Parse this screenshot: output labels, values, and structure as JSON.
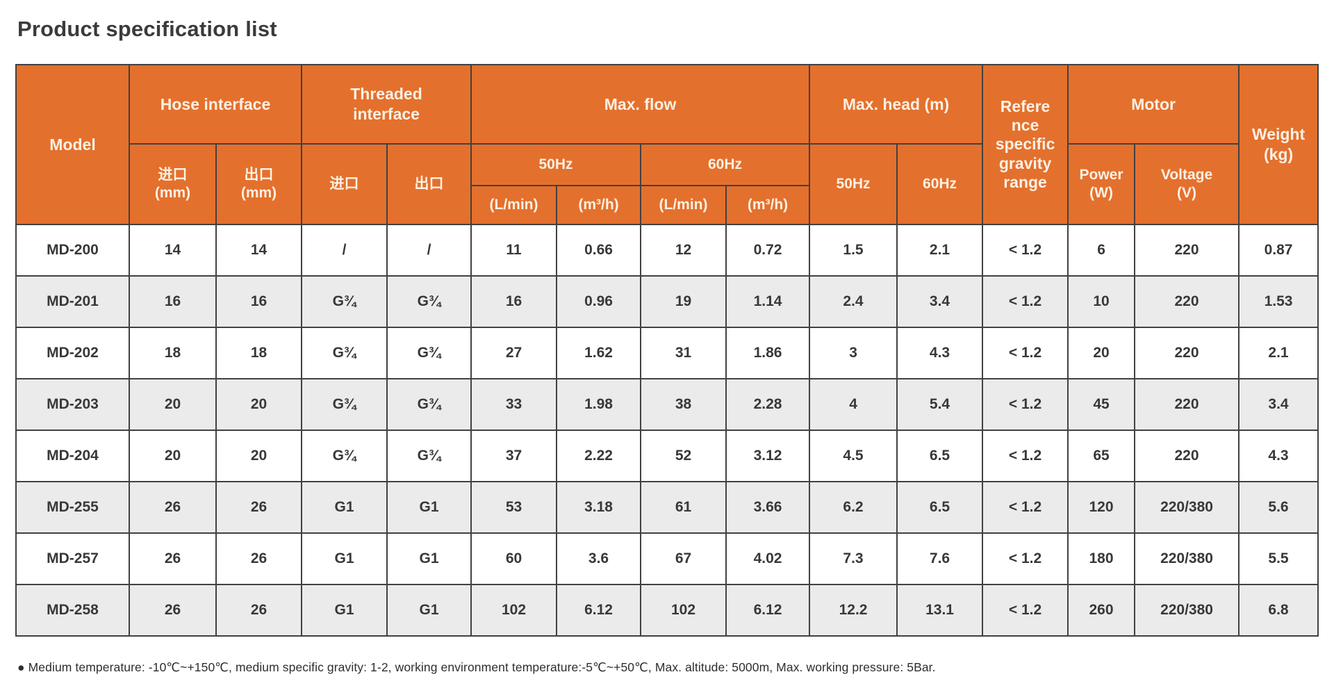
{
  "page": {
    "title": "Product specification list",
    "footnote": "● Medium temperature: -10℃~+150℃, medium specific gravity: 1-2, working environment temperature:-5℃~+50℃, Max. altitude: 5000m, Max. working pressure: 5Bar."
  },
  "colors": {
    "header_bg": "#e4702d",
    "header_text": "#fbf1e4",
    "row_alt_bg": "#ebebeb",
    "grid_border": "#414141",
    "body_text": "#383838"
  },
  "table": {
    "headers": {
      "model": "Model",
      "hose_interface": "Hose interface",
      "threaded_interface": "Threaded\ninterface",
      "max_flow": "Max. flow",
      "max_head": "Max. head (m)",
      "reference_specific_gravity_range": "Refere\nnce\nspecific\ngravity\nrange",
      "motor": "Motor",
      "weight": "Weight\n(kg)",
      "hose_inlet": "进口\n(mm)",
      "hose_outlet": "出口\n(mm)",
      "threaded_inlet": "进口",
      "threaded_outlet": "出口",
      "flow_50hz": "50Hz",
      "flow_60hz": "60Hz",
      "head_50hz": "50Hz",
      "head_60hz": "60Hz",
      "power": "Power\n(W)",
      "voltage": "Voltage\n(V)",
      "unit_lmin_50": "(L/min)",
      "unit_m3h_50": "(m³/h)",
      "unit_lmin_60": "(L/min)",
      "unit_m3h_60": "(m³/h)"
    },
    "rows": [
      {
        "model": "MD-200",
        "values": [
          "14",
          "14",
          "/",
          "/",
          "11",
          "0.66",
          "12",
          "0.72",
          "1.5",
          "2.1",
          "< 1.2",
          "6",
          "220",
          "0.87"
        ]
      },
      {
        "model": "MD-201",
        "values": [
          "16",
          "16",
          "G¾",
          "G¾",
          "16",
          "0.96",
          "19",
          "1.14",
          "2.4",
          "3.4",
          "< 1.2",
          "10",
          "220",
          "1.53"
        ]
      },
      {
        "model": "MD-202",
        "values": [
          "18",
          "18",
          "G¾",
          "G¾",
          "27",
          "1.62",
          "31",
          "1.86",
          "3",
          "4.3",
          "< 1.2",
          "20",
          "220",
          "2.1"
        ]
      },
      {
        "model": "MD-203",
        "values": [
          "20",
          "20",
          "G¾",
          "G¾",
          "33",
          "1.98",
          "38",
          "2.28",
          "4",
          "5.4",
          "< 1.2",
          "45",
          "220",
          "3.4"
        ]
      },
      {
        "model": "MD-204",
        "values": [
          "20",
          "20",
          "G¾",
          "G¾",
          "37",
          "2.22",
          "52",
          "3.12",
          "4.5",
          "6.5",
          "< 1.2",
          "65",
          "220",
          "4.3"
        ]
      },
      {
        "model": "MD-255",
        "values": [
          "26",
          "26",
          "G1",
          "G1",
          "53",
          "3.18",
          "61",
          "3.66",
          "6.2",
          "6.5",
          "< 1.2",
          "120",
          "220/380",
          "5.6"
        ]
      },
      {
        "model": "MD-257",
        "values": [
          "26",
          "26",
          "G1",
          "G1",
          "60",
          "3.6",
          "67",
          "4.02",
          "7.3",
          "7.6",
          "< 1.2",
          "180",
          "220/380",
          "5.5"
        ]
      },
      {
        "model": "MD-258",
        "values": [
          "26",
          "26",
          "G1",
          "G1",
          "102",
          "6.12",
          "102",
          "6.12",
          "12.2",
          "13.1",
          "< 1.2",
          "260",
          "220/380",
          "6.8"
        ]
      }
    ]
  }
}
